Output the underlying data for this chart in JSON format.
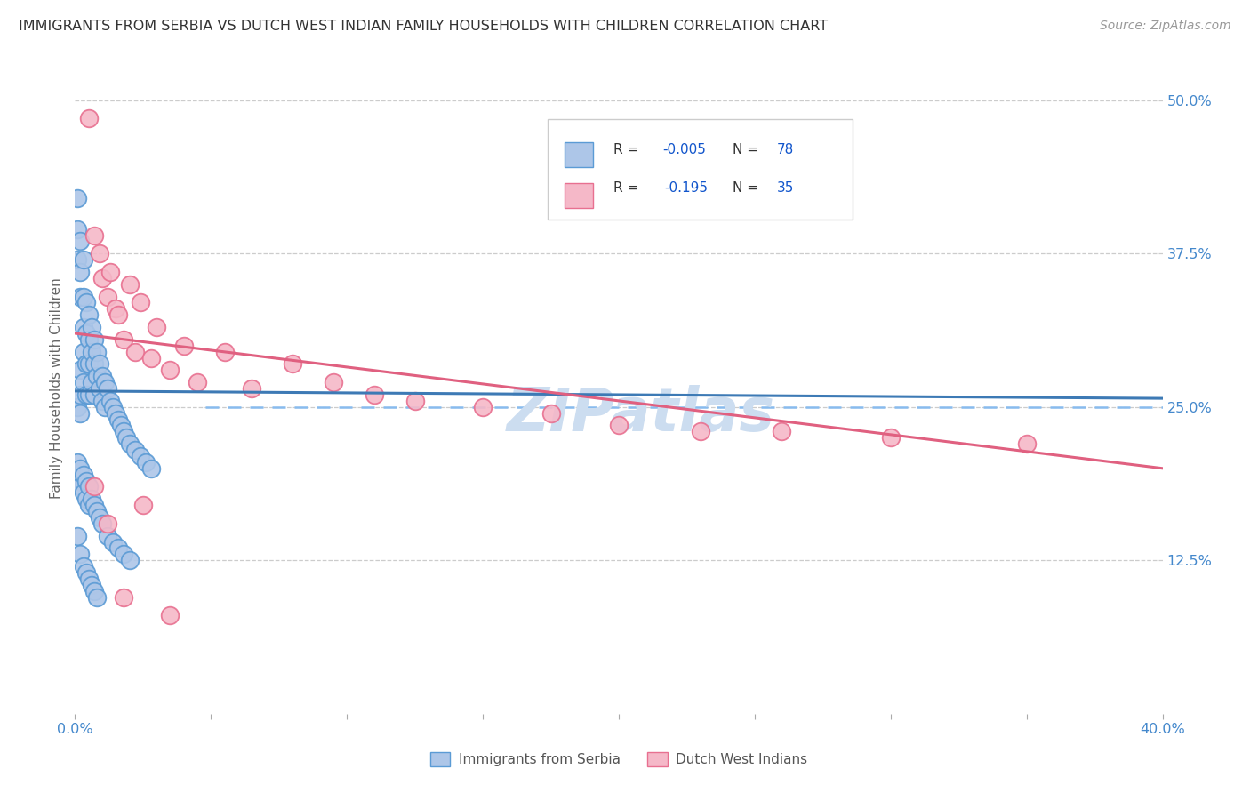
{
  "title": "IMMIGRANTS FROM SERBIA VS DUTCH WEST INDIAN FAMILY HOUSEHOLDS WITH CHILDREN CORRELATION CHART",
  "source": "Source: ZipAtlas.com",
  "ylabel": "Family Households with Children",
  "ytick_labels": [
    "12.5%",
    "25.0%",
    "37.5%",
    "50.0%"
  ],
  "ytick_values": [
    0.125,
    0.25,
    0.375,
    0.5
  ],
  "xlim": [
    0.0,
    0.4
  ],
  "ylim": [
    0.0,
    0.53
  ],
  "legend_label1": "Immigrants from Serbia",
  "legend_label2": "Dutch West Indians",
  "color_serbia_fill": "#adc6e8",
  "color_serbia_edge": "#5b9bd5",
  "color_dwi_fill": "#f5b8c8",
  "color_dwi_edge": "#e87090",
  "color_serbia_line": "#3d7ab5",
  "color_dwi_line": "#e06080",
  "color_dashed": "#88bbee",
  "color_title": "#333333",
  "color_source": "#999999",
  "color_axis_blue": "#4488cc",
  "color_legend_text": "#222222",
  "color_legend_val": "#1155cc",
  "color_watermark": "#ccddf0",
  "background_color": "#ffffff",
  "grid_color": "#cccccc",
  "serbia_x": [
    0.001,
    0.001,
    0.001,
    0.001,
    0.002,
    0.002,
    0.002,
    0.002,
    0.002,
    0.002,
    0.003,
    0.003,
    0.003,
    0.003,
    0.003,
    0.004,
    0.004,
    0.004,
    0.004,
    0.005,
    0.005,
    0.005,
    0.005,
    0.006,
    0.006,
    0.006,
    0.007,
    0.007,
    0.007,
    0.008,
    0.008,
    0.009,
    0.009,
    0.01,
    0.01,
    0.011,
    0.011,
    0.012,
    0.013,
    0.014,
    0.015,
    0.016,
    0.017,
    0.018,
    0.019,
    0.02,
    0.022,
    0.024,
    0.026,
    0.028,
    0.001,
    0.001,
    0.002,
    0.002,
    0.003,
    0.003,
    0.004,
    0.004,
    0.005,
    0.005,
    0.006,
    0.007,
    0.008,
    0.009,
    0.01,
    0.012,
    0.014,
    0.016,
    0.018,
    0.02,
    0.001,
    0.002,
    0.003,
    0.004,
    0.005,
    0.006,
    0.007,
    0.008
  ],
  "serbia_y": [
    0.42,
    0.395,
    0.37,
    0.25,
    0.385,
    0.36,
    0.34,
    0.28,
    0.26,
    0.245,
    0.37,
    0.34,
    0.315,
    0.295,
    0.27,
    0.335,
    0.31,
    0.285,
    0.26,
    0.325,
    0.305,
    0.285,
    0.26,
    0.315,
    0.295,
    0.27,
    0.305,
    0.285,
    0.26,
    0.295,
    0.275,
    0.285,
    0.265,
    0.275,
    0.255,
    0.27,
    0.25,
    0.265,
    0.255,
    0.25,
    0.245,
    0.24,
    0.235,
    0.23,
    0.225,
    0.22,
    0.215,
    0.21,
    0.205,
    0.2,
    0.205,
    0.19,
    0.2,
    0.185,
    0.195,
    0.18,
    0.19,
    0.175,
    0.185,
    0.17,
    0.175,
    0.17,
    0.165,
    0.16,
    0.155,
    0.145,
    0.14,
    0.135,
    0.13,
    0.125,
    0.145,
    0.13,
    0.12,
    0.115,
    0.11,
    0.105,
    0.1,
    0.095
  ],
  "dwi_x": [
    0.005,
    0.007,
    0.009,
    0.01,
    0.012,
    0.013,
    0.015,
    0.016,
    0.018,
    0.02,
    0.022,
    0.024,
    0.028,
    0.03,
    0.035,
    0.04,
    0.045,
    0.055,
    0.065,
    0.08,
    0.095,
    0.11,
    0.125,
    0.15,
    0.175,
    0.2,
    0.23,
    0.26,
    0.3,
    0.35,
    0.007,
    0.012,
    0.018,
    0.025,
    0.035
  ],
  "dwi_y": [
    0.485,
    0.39,
    0.375,
    0.355,
    0.34,
    0.36,
    0.33,
    0.325,
    0.305,
    0.35,
    0.295,
    0.335,
    0.29,
    0.315,
    0.28,
    0.3,
    0.27,
    0.295,
    0.265,
    0.285,
    0.27,
    0.26,
    0.255,
    0.25,
    0.245,
    0.235,
    0.23,
    0.23,
    0.225,
    0.22,
    0.185,
    0.155,
    0.095,
    0.17,
    0.08
  ],
  "serbia_trend_x": [
    0.0,
    0.4
  ],
  "serbia_trend_y": [
    0.263,
    0.257
  ],
  "dwi_trend_x": [
    0.0,
    0.4
  ],
  "dwi_trend_y": [
    0.31,
    0.2
  ]
}
